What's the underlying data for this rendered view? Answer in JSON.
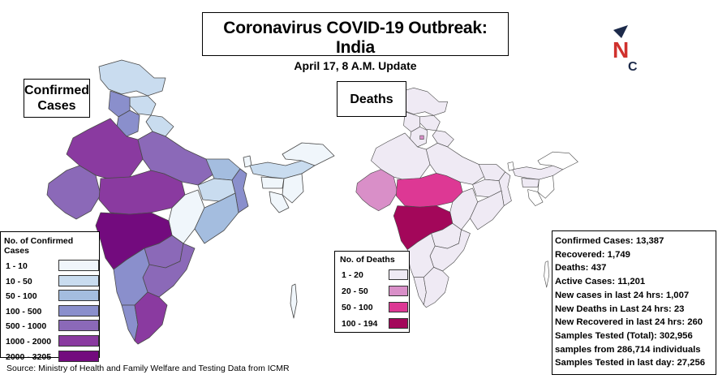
{
  "header": {
    "title": "Coronavirus COVID-19 Outbreak: India",
    "subtitle": "April 17, 8 A.M. Update"
  },
  "logo": {
    "letters": [
      "N",
      "C"
    ],
    "colors": {
      "navy": "#1c2a4a",
      "red": "#d0312d"
    }
  },
  "confirmed_map": {
    "label": "Confirmed Cases",
    "legend_title": "No. of Confirmed Cases",
    "legend": [
      {
        "label": "1 - 10",
        "color": "#f0f6fb"
      },
      {
        "label": "10 - 50",
        "color": "#c9dcef"
      },
      {
        "label": "50 - 100",
        "color": "#a4bddf"
      },
      {
        "label": "100 - 500",
        "color": "#8a8fcc"
      },
      {
        "label": "500 - 1000",
        "color": "#8b69b8"
      },
      {
        "label": "1000 - 2000",
        "color": "#8a3aa0"
      },
      {
        "label": "2000 - 3205",
        "color": "#730b7e"
      }
    ]
  },
  "deaths_map": {
    "label": "Deaths",
    "legend_title": "No. of Deaths",
    "legend": [
      {
        "label": "1 - 20",
        "color": "#efeaf4"
      },
      {
        "label": "20 - 50",
        "color": "#d98fc8"
      },
      {
        "label": "50 - 100",
        "color": "#dd3894"
      },
      {
        "label": "100 - 194",
        "color": "#a3075a"
      }
    ]
  },
  "stats": [
    "Confirmed Cases: 13,387",
    "Recovered: 1,749",
    "Deaths: 437",
    "Active Cases: 11,201",
    "New cases in last 24 hrs: 1,007",
    "New Deaths in Last 24 hrs: 23",
    "New Recovered in last 24 hrs: 260",
    "Samples Tested (Total): 302,956",
    "samples from 286,714 individuals",
    "Samples Tested in last day: 27,256"
  ],
  "source": "Source: Ministry of Health and Family Welfare and Testing Data from ICMR"
}
